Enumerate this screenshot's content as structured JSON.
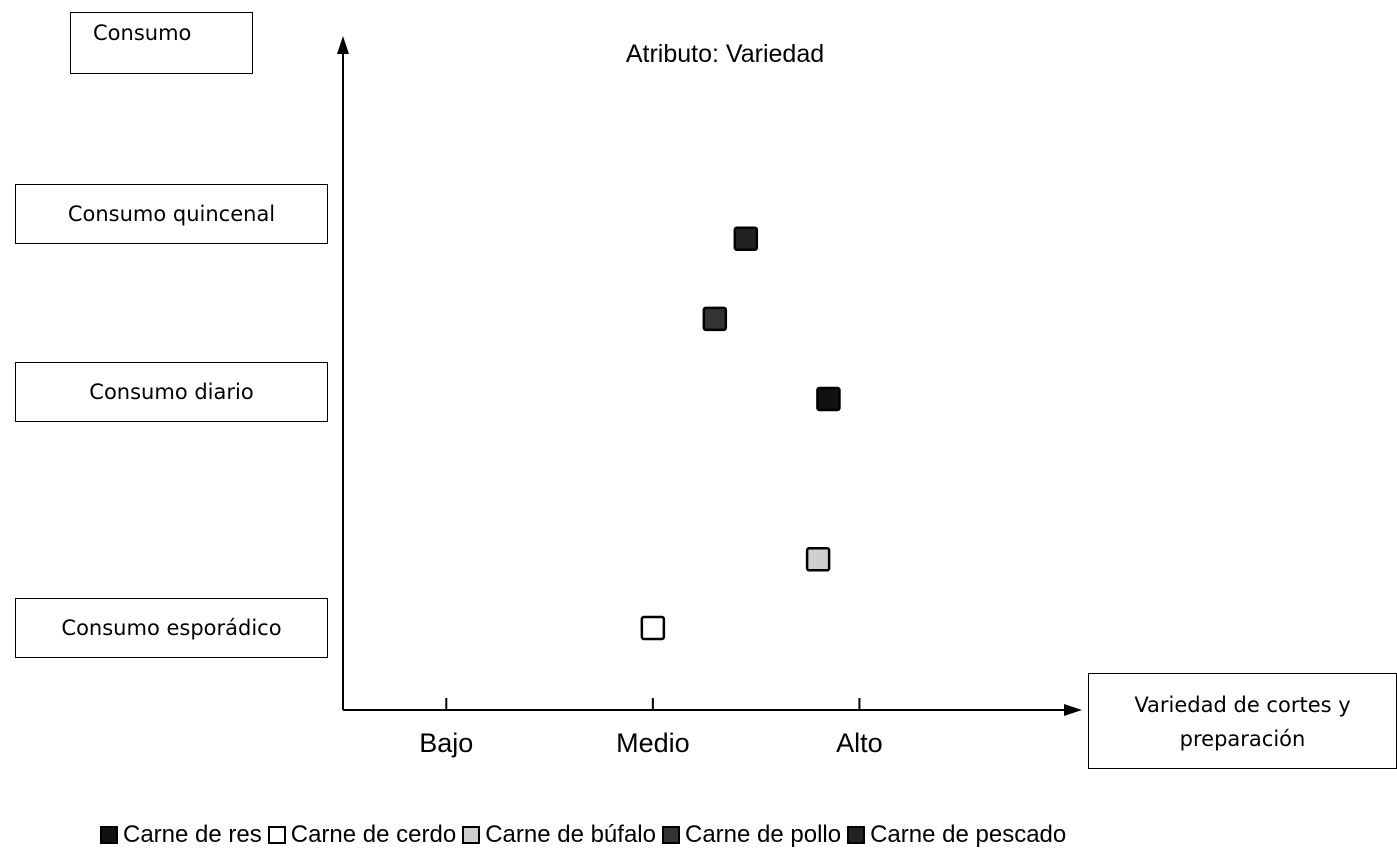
{
  "chart_data": {
    "type": "scatter",
    "title": "Atributo: Variedad",
    "ylabel": "Consumo",
    "xlabel": "Variedad de cortes y preparación",
    "x_ticks": [
      "Bajo",
      "Medio",
      "Alto"
    ],
    "y_categories": [
      "Consumo quincenal",
      "Consumo diario",
      "Consumo esporádico"
    ],
    "xlim": [
      0.5,
      4.0
    ],
    "series": [
      {
        "name": "Carne de res",
        "x": 2.85,
        "y": 3.0,
        "color": "#111111"
      },
      {
        "name": "Carne de cerdo",
        "x": 2.0,
        "y": 1.0,
        "color": "#ffffff"
      },
      {
        "name": "Carne de búfalo",
        "x": 2.8,
        "y": 1.6,
        "color": "#cfcfcf"
      },
      {
        "name": "Carne de pollo",
        "x": 2.3,
        "y": 3.7,
        "color": "#333333"
      },
      {
        "name": "Carne de pescado",
        "x": 2.45,
        "y": 4.4,
        "color": "#222222"
      }
    ]
  },
  "legend": {
    "items": [
      "Carne de res",
      "Carne de cerdo",
      "Carne de búfalo",
      "Carne de pollo",
      "Carne de pescado"
    ]
  }
}
